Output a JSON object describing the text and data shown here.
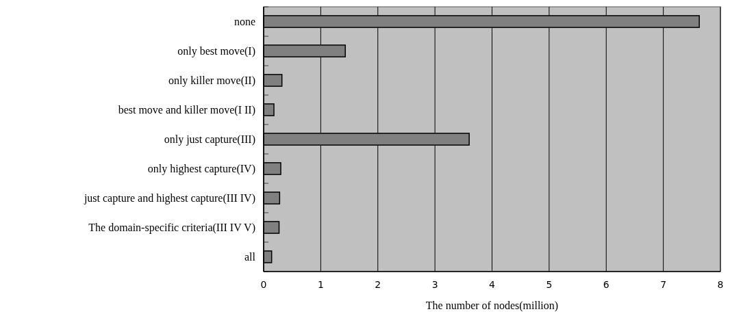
{
  "chart_data": {
    "type": "bar",
    "orientation": "horizontal",
    "xlabel": "The number of nodes(million)",
    "categories": [
      "none",
      "only best move(I)",
      "only killer move(II)",
      "best move and killer move(I II)",
      "only just capture(III)",
      "only highest capture(IV)",
      "just capture and highest capture(III IV)",
      "The domain-specific criteria(III IV V)",
      "all"
    ],
    "values": [
      7.63,
      1.43,
      0.32,
      0.18,
      3.6,
      0.3,
      0.28,
      0.27,
      0.14
    ],
    "color": "#808080",
    "xlim": [
      0,
      8
    ],
    "xticks": [
      0,
      1,
      2,
      3,
      4,
      5,
      6,
      7,
      8
    ],
    "grid": "x"
  }
}
